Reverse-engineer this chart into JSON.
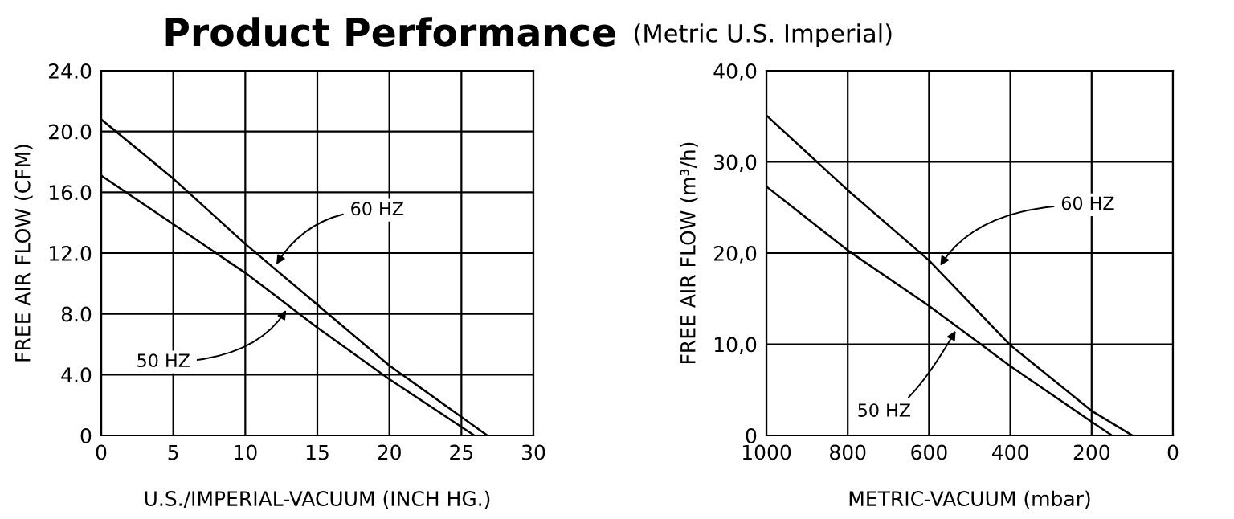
{
  "chart_data": [
    {
      "type": "line",
      "title": "Product Performance",
      "xlabel": "U.S./IMPERIAL-VACUUM (INCH HG.)",
      "ylabel": "FREE AIR FLOW (CFM)",
      "series": [
        {
          "color": "#000000",
          "x": [
            0,
            5,
            10,
            15,
            20,
            26.8
          ],
          "values": [
            20.8,
            16.9,
            12.6,
            8.6,
            4.6,
            0
          ]
        },
        {
          "color": "#000000",
          "x": [
            0,
            5,
            10,
            15,
            20,
            25.9
          ],
          "values": [
            17.1,
            13.9,
            10.7,
            7.1,
            3.7,
            0
          ]
        }
      ],
      "xlim": [
        0,
        30
      ],
      "xticks": [
        0,
        5,
        10,
        15,
        20,
        25,
        30
      ],
      "ylim": [
        0,
        24
      ],
      "yticks": [
        0,
        {
          "value": 4,
          "label": "4.0"
        },
        {
          "value": 8,
          "label": "8.0"
        },
        {
          "value": 12,
          "label": "12.0"
        },
        {
          "value": 16,
          "label": "16.0"
        },
        {
          "value": 20,
          "label": "20.0"
        },
        {
          "value": 24,
          "label": "24.0"
        }
      ],
      "grid": true,
      "marker": "none",
      "line_style": "solid",
      "annotations": [
        {
          "text": "60 HZ",
          "x": 12,
          "y": 11.0
        },
        {
          "text": "50 HZ",
          "x": 13,
          "y": 8.5
        }
      ]
    },
    {
      "type": "line",
      "subtitle": "(Metric U.S. Imperial)",
      "xlabel": "METRIC-VACUUM (mbar)",
      "ylabel": "FREE AIR FLOW (m³/h)",
      "series": [
        {
          "color": "#000000",
          "x": [
            1000,
            800,
            600,
            400,
            200,
            100
          ],
          "values": [
            35.1,
            26.9,
            19.2,
            9.9,
            2.7,
            0
          ]
        },
        {
          "color": "#000000",
          "x": [
            1000,
            800,
            600,
            400,
            200,
            150
          ],
          "values": [
            27.3,
            20.3,
            14.2,
            7.6,
            1.5,
            0
          ]
        }
      ],
      "xlim": [
        1000,
        0
      ],
      "xticks": [
        1000,
        800,
        600,
        400,
        200,
        0
      ],
      "ylim": [
        0,
        40
      ],
      "yticks": [
        0,
        {
          "value": 10,
          "label": "10,0"
        },
        {
          "value": 20,
          "label": "20,0"
        },
        {
          "value": 30,
          "label": "30,0"
        },
        {
          "value": 40,
          "label": "40,0"
        }
      ],
      "grid": true,
      "marker": "none",
      "line_style": "solid",
      "annotations": [
        {
          "text": "60 HZ",
          "x": 578,
          "y": 18.2
        },
        {
          "text": "50 HZ",
          "x": 529,
          "y": 11.9
        }
      ]
    }
  ]
}
